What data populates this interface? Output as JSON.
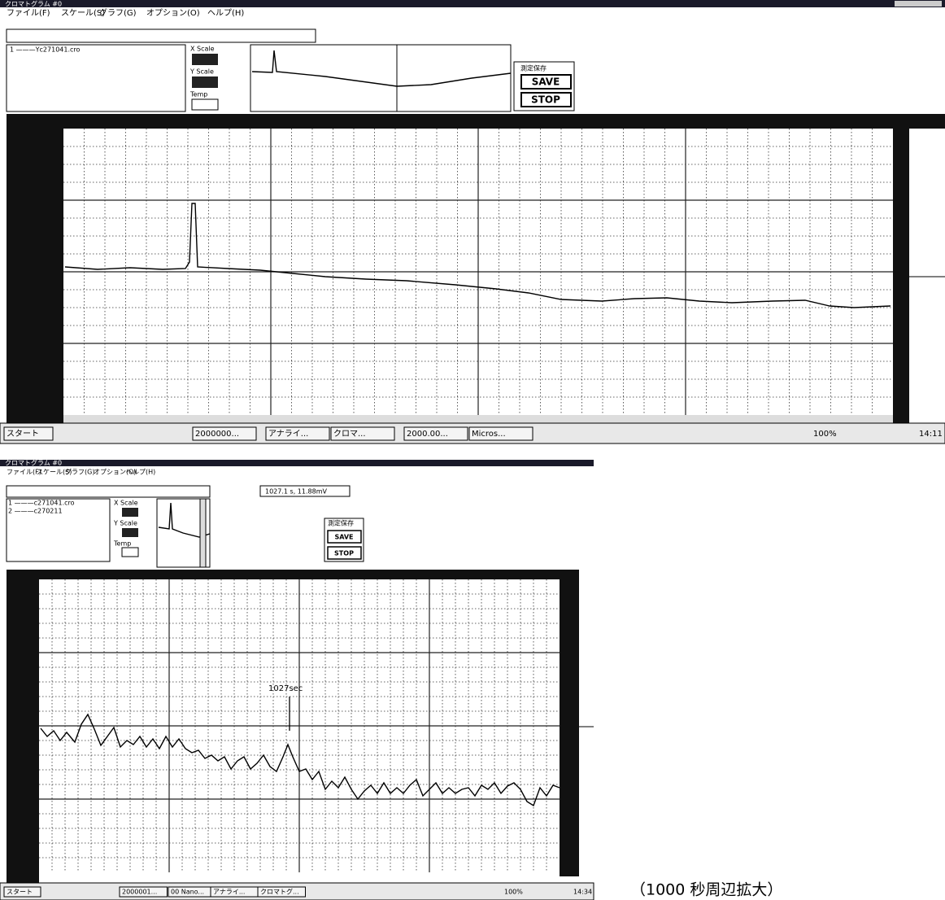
{
  "window1": {
    "title": "クロマトグラム #0",
    "menu": [
      "ファイル(F)",
      "スケール(S)",
      "グラフ(G)",
      "オプション(O)",
      "ヘルプ(H)"
    ],
    "file_list": [
      "1 ———Yc271041.cro"
    ],
    "x_scale": "X Scale",
    "y_scale": "Y Scale",
    "temp": "Temp",
    "save_group": "測定保存",
    "save": "SAVE",
    "stop": "STOP",
    "taskbar": [
      "スタート",
      "2000000...",
      "アナライ...",
      "クロマ...",
      "2000.00...",
      "Micros..."
    ],
    "zoom": "100%",
    "clock": "14:11"
  },
  "window2": {
    "title": "クロマトグラム #0",
    "menu": [
      "ファイル(F)",
      "スケール(S)",
      "グラフ(G)",
      "オプション(O)",
      "ヘルプ(H)"
    ],
    "readout": "1027.1 s,  11.88mV",
    "file_list": [
      "1 ———c271041.cro",
      "2 ———c270211"
    ],
    "x_scale": "X Scale",
    "y_scale": "Y Scale",
    "temp": "Temp",
    "save_group": "測定保存",
    "save": "SAVE",
    "stop": "STOP",
    "annotation": "1027sec",
    "taskbar": [
      "スタート",
      "2000001...",
      "00 Nano...",
      "アナライ...",
      "クロマトグ..."
    ],
    "zoom": "100%",
    "clock": "14:34"
  },
  "caption": "（1000 秒周辺拡大）"
}
